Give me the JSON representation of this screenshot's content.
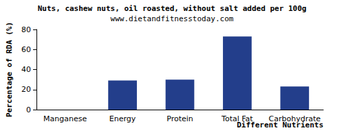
{
  "chart_data": {
    "type": "bar",
    "title": "Nuts, cashew nuts, oil roasted, without salt added per 100g",
    "subtitle": "www.dietandfitnesstoday.com",
    "x_label": "Different Nutrients",
    "y_label": "Percentage of RDA (%)",
    "categories": [
      "Manganese",
      "Energy",
      "Protein",
      "Total Fat",
      "Carbohydrate"
    ],
    "values": [
      0,
      29,
      30,
      73,
      23
    ],
    "color": "#233e8b",
    "ylim": [
      0,
      80
    ],
    "yticks": [
      0,
      20,
      40,
      60,
      80
    ],
    "grid": false
  }
}
